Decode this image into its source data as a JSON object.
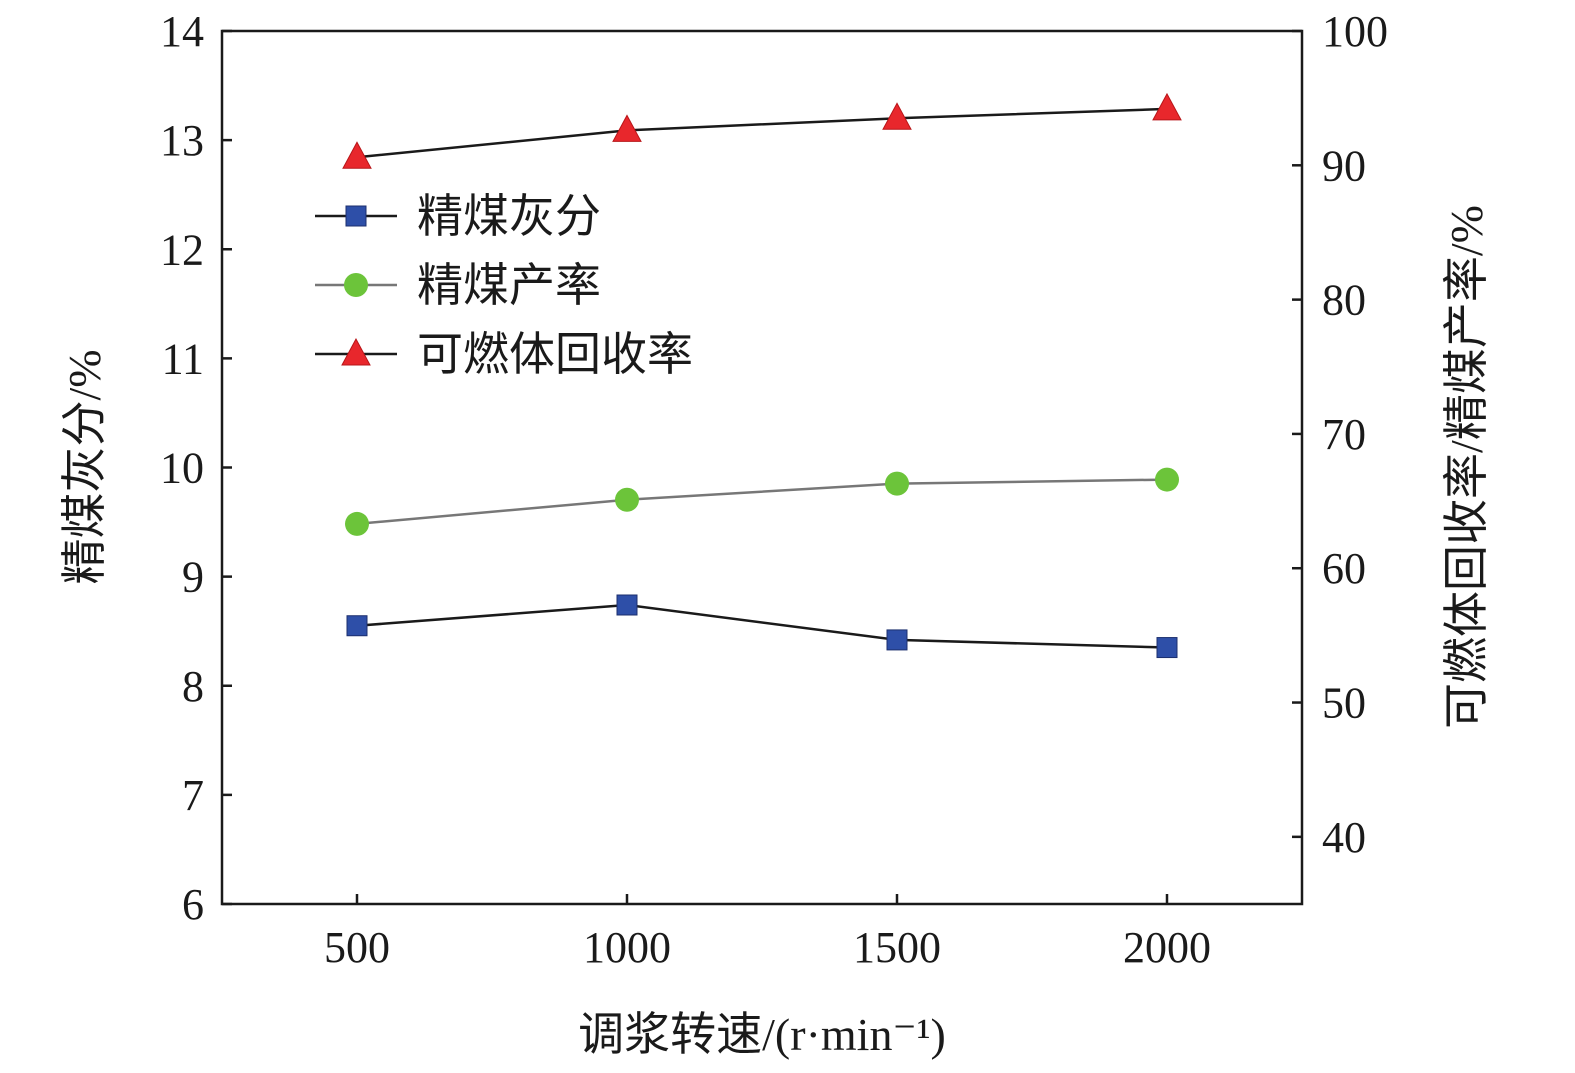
{
  "chart_data": {
    "type": "line",
    "x": [
      500,
      1000,
      1500,
      2000
    ],
    "xlabel": "调浆转速/(r·min⁻¹)",
    "x_ticks": [
      "500",
      "1000",
      "1500",
      "2000"
    ],
    "xlim": [
      250,
      2250
    ],
    "ylabel_left": "精煤灰分/%",
    "ylim_left": [
      6,
      14
    ],
    "y_ticks_left": [
      "6",
      "7",
      "8",
      "9",
      "10",
      "11",
      "12",
      "13",
      "14"
    ],
    "ylabel_right": "可燃体回收率/精煤产率/%",
    "ylim_right": [
      35,
      100
    ],
    "y_ticks_right": [
      "40",
      "50",
      "60",
      "70",
      "80",
      "90",
      "100"
    ],
    "legend_position": "upper-left",
    "grid": false,
    "series": [
      {
        "name": "精煤灰分",
        "axis": "left",
        "marker": "square",
        "color": "#2e4fa8",
        "line_color": "#1a1a1a",
        "values": [
          8.55,
          8.74,
          8.42,
          8.35
        ]
      },
      {
        "name": "精煤产率",
        "axis": "right",
        "marker": "circle",
        "color": "#6cc43a",
        "line_color": "#777777",
        "values": [
          63.3,
          65.1,
          66.3,
          66.6
        ]
      },
      {
        "name": "可燃体回收率",
        "axis": "right",
        "marker": "triangle",
        "color": "#e8272c",
        "line_color": "#1a1a1a",
        "values": [
          90.6,
          92.6,
          93.5,
          94.2
        ]
      }
    ]
  }
}
